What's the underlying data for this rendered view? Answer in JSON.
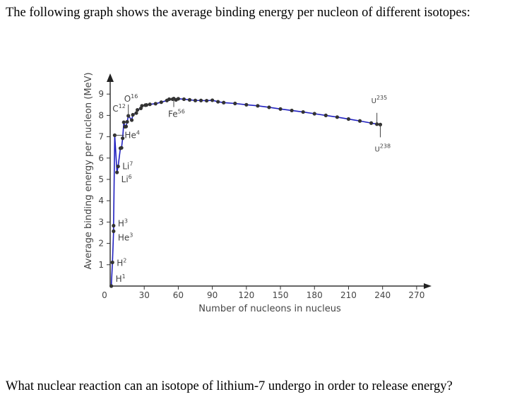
{
  "intro": "The following graph shows the average binding energy per nucleon of different isotopes:",
  "question": "What nuclear reaction can an isotope of lithium-7 undergo in order to release energy?",
  "chart_data": {
    "type": "line",
    "title": "",
    "xlabel": "Number of nucleons in nucleus",
    "ylabel": "Average binding energy per nucleon (MeV)",
    "xlim": [
      0,
      275
    ],
    "ylim": [
      0,
      9.5
    ],
    "xticks": [
      0,
      30,
      60,
      90,
      120,
      150,
      180,
      210,
      240,
      270
    ],
    "yticks": [
      1,
      2,
      3,
      4,
      5,
      6,
      7,
      8,
      9
    ],
    "grid": false,
    "line_color": "#2020c0",
    "marker_color": "#333333",
    "points": [
      [
        1,
        0
      ],
      [
        2,
        1.11
      ],
      [
        3,
        2.57
      ],
      [
        3,
        2.83
      ],
      [
        4,
        7.07
      ],
      [
        6,
        5.33
      ],
      [
        7,
        5.61
      ],
      [
        9,
        6.46
      ],
      [
        10,
        6.48
      ],
      [
        11,
        6.93
      ],
      [
        12,
        7.68
      ],
      [
        13,
        7.47
      ],
      [
        14,
        7.48
      ],
      [
        15,
        7.7
      ],
      [
        16,
        7.98
      ],
      [
        19,
        7.78
      ],
      [
        20,
        8.03
      ],
      [
        23,
        8.11
      ],
      [
        24,
        8.26
      ],
      [
        27,
        8.33
      ],
      [
        28,
        8.45
      ],
      [
        31,
        8.48
      ],
      [
        32,
        8.49
      ],
      [
        35,
        8.52
      ],
      [
        40,
        8.55
      ],
      [
        45,
        8.62
      ],
      [
        50,
        8.7
      ],
      [
        52,
        8.76
      ],
      [
        55,
        8.76
      ],
      [
        56,
        8.79
      ],
      [
        58,
        8.73
      ],
      [
        60,
        8.78
      ],
      [
        65,
        8.76
      ],
      [
        70,
        8.73
      ],
      [
        75,
        8.7
      ],
      [
        80,
        8.7
      ],
      [
        85,
        8.69
      ],
      [
        90,
        8.71
      ],
      [
        95,
        8.64
      ],
      [
        100,
        8.6
      ],
      [
        110,
        8.56
      ],
      [
        120,
        8.5
      ],
      [
        130,
        8.45
      ],
      [
        140,
        8.38
      ],
      [
        150,
        8.3
      ],
      [
        160,
        8.23
      ],
      [
        170,
        8.16
      ],
      [
        180,
        8.08
      ],
      [
        190,
        8.0
      ],
      [
        200,
        7.92
      ],
      [
        210,
        7.83
      ],
      [
        220,
        7.74
      ],
      [
        230,
        7.64
      ],
      [
        235,
        7.59
      ],
      [
        238,
        7.57
      ]
    ],
    "annotations": [
      {
        "base": "H",
        "sup": "1",
        "x": 1,
        "y": 0
      },
      {
        "base": "H",
        "sup": "2",
        "x": 2,
        "y": 1.11
      },
      {
        "base": "H",
        "sup": "3",
        "x": 3,
        "y": 2.83
      },
      {
        "base": "He",
        "sup": "3",
        "x": 3,
        "y": 2.57
      },
      {
        "base": "Li",
        "sup": "6",
        "x": 6,
        "y": 5.33
      },
      {
        "base": "Li",
        "sup": "7",
        "x": 7,
        "y": 5.61
      },
      {
        "base": "He",
        "sup": "4",
        "x": 4,
        "y": 7.07
      },
      {
        "base": "C",
        "sup": "12",
        "x": 12,
        "y": 7.68
      },
      {
        "base": "O",
        "sup": "16",
        "x": 16,
        "y": 7.98
      },
      {
        "base": "Fe",
        "sup": "56",
        "x": 56,
        "y": 8.79
      },
      {
        "base": "U",
        "sup": "235",
        "x": 235,
        "y": 7.59
      },
      {
        "base": "U",
        "sup": "238",
        "x": 238,
        "y": 7.57
      }
    ]
  }
}
